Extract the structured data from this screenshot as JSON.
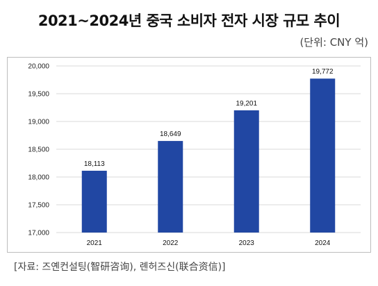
{
  "header": {
    "title": "2021~2024년 중국 소비자 전자 시장 규모 추이",
    "unit": "(단위: CNY 억)"
  },
  "footer": {
    "source": "[자료: 즈옌컨설팅(智研咨询), 롄허즈신(联合资信)]"
  },
  "colors": {
    "bar": "#2147a3",
    "grid": "#d9d9d9"
  },
  "chart_data": {
    "type": "bar",
    "categories": [
      "2021",
      "2022",
      "2023",
      "2024"
    ],
    "values": [
      18113,
      18649,
      19201,
      19772
    ],
    "value_labels": [
      "18,113",
      "18,649",
      "19,201",
      "19,772"
    ],
    "y_ticks": [
      "17,000",
      "17,500",
      "18,000",
      "18,500",
      "19,000",
      "19,500",
      "20,000"
    ],
    "y_tick_values": [
      17000,
      17500,
      18000,
      18500,
      19000,
      19500,
      20000
    ],
    "ylim": [
      17000,
      20000
    ],
    "grid": true,
    "legend": false
  }
}
